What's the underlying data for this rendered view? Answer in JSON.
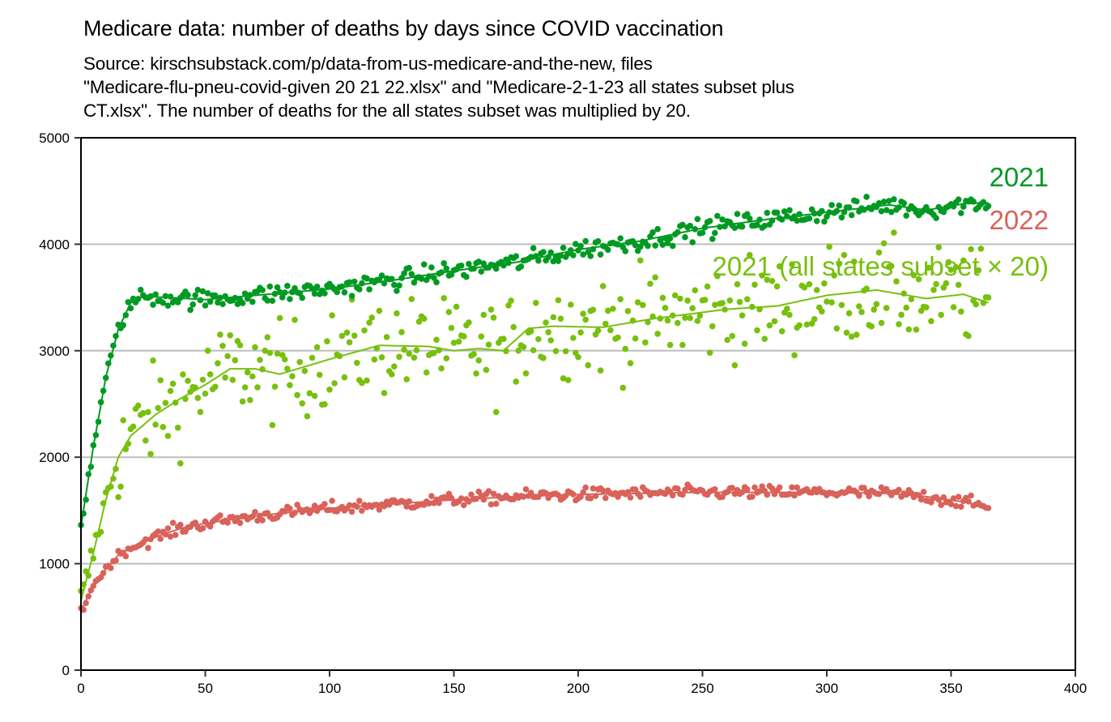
{
  "chart_data": {
    "type": "scatter",
    "title": "Medicare data: number of deaths by days since COVID vaccination",
    "subtitle_lines": [
      "Source: kirschsubstack.com/p/data-from-us-medicare-and-the-new, files",
      "\"Medicare-flu-pneu-covid-given 20 21 22.xlsx\" and \"Medicare-2-1-23 all states subset plus",
      "CT.xlsx\". The number of deaths for the all states subset was multiplied by 20."
    ],
    "xlabel": "",
    "ylabel": "",
    "xlim": [
      0,
      400
    ],
    "ylim": [
      0,
      5000
    ],
    "xticks": [
      0,
      50,
      100,
      150,
      200,
      250,
      300,
      350,
      400
    ],
    "yticks": [
      0,
      1000,
      2000,
      3000,
      4000,
      5000
    ],
    "grid": "horizontal",
    "legend": "inline labels at right end of series (top-right)",
    "x_range_of_points": [
      0,
      365
    ],
    "series": [
      {
        "name": "2021",
        "label": "2021",
        "color": "#009a22",
        "point_noise_sd": 45,
        "trend": {
          "x": [
            0,
            5,
            10,
            15,
            20,
            25,
            35,
            50,
            75,
            100,
            125,
            150,
            175,
            200,
            225,
            250,
            275,
            300,
            325,
            340,
            355,
            365
          ],
          "y": [
            1350,
            2100,
            2750,
            3200,
            3450,
            3510,
            3500,
            3480,
            3530,
            3580,
            3660,
            3750,
            3830,
            3950,
            4030,
            4150,
            4230,
            4300,
            4370,
            4320,
            4380,
            4390
          ]
        }
      },
      {
        "name": "2022",
        "label": "2022",
        "color": "#d9625a",
        "point_noise_sd": 30,
        "trend": {
          "x": [
            0,
            5,
            10,
            15,
            20,
            30,
            40,
            50,
            75,
            100,
            125,
            150,
            175,
            200,
            225,
            250,
            275,
            300,
            325,
            340,
            355,
            365
          ],
          "y": [
            550,
            800,
            950,
            1080,
            1150,
            1250,
            1330,
            1380,
            1460,
            1520,
            1560,
            1600,
            1630,
            1650,
            1660,
            1670,
            1670,
            1670,
            1660,
            1630,
            1580,
            1530
          ]
        }
      },
      {
        "name": "2021 (all states subset × 20)",
        "label": "2021 (all states subset × 20)",
        "color": "#77c00d",
        "point_noise_sd": 230,
        "trend": {
          "x": [
            0,
            5,
            10,
            15,
            20,
            30,
            40,
            50,
            60,
            70,
            80,
            100,
            120,
            140,
            150,
            160,
            170,
            180,
            190,
            210,
            230,
            260,
            280,
            300,
            320,
            340,
            355,
            365
          ],
          "y": [
            650,
            1100,
            1600,
            2000,
            2200,
            2400,
            2550,
            2680,
            2830,
            2830,
            2780,
            2920,
            3050,
            3040,
            3000,
            3020,
            3000,
            3210,
            3230,
            3220,
            3300,
            3390,
            3420,
            3520,
            3570,
            3490,
            3530,
            3450
          ]
        }
      }
    ]
  }
}
